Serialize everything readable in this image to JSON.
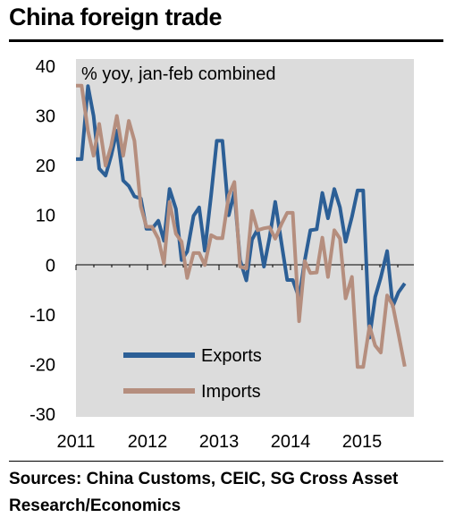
{
  "chart_data": {
    "type": "line",
    "title": "China foreign trade",
    "axis_note": "% yoy, jan-feb combined",
    "ylim": [
      -30,
      40
    ],
    "y_ticks": [
      40,
      30,
      20,
      10,
      0,
      -10,
      -20,
      -30
    ],
    "x_tick_labels": [
      "2011",
      "2012",
      "2013",
      "2014",
      "2015"
    ],
    "xlim": [
      2011.0,
      2015.8
    ],
    "grid": false,
    "legend_position": "bottom-left",
    "series": [
      {
        "name": "Exports",
        "color": "#2c5f96",
        "x": [
          2011.0,
          2011.08,
          2011.17,
          2011.25,
          2011.33,
          2011.42,
          2011.5,
          2011.58,
          2011.67,
          2011.75,
          2011.83,
          2011.92,
          2012.0,
          2012.08,
          2012.17,
          2012.25,
          2012.33,
          2012.42,
          2012.5,
          2012.58,
          2012.67,
          2012.75,
          2012.83,
          2012.92,
          2013.0,
          2013.08,
          2013.17,
          2013.25,
          2013.33,
          2013.42,
          2013.5,
          2013.58,
          2013.67,
          2013.75,
          2013.83,
          2013.92,
          2014.0,
          2014.08,
          2014.17,
          2014.25,
          2014.33,
          2014.42,
          2014.5,
          2014.58,
          2014.67,
          2014.75,
          2014.83,
          2014.92,
          2015.0,
          2015.08,
          2015.17,
          2015.25,
          2015.33,
          2015.42,
          2015.5,
          2015.58,
          2015.67
        ],
        "values": [
          21.3,
          21.3,
          36,
          30,
          19.4,
          18,
          22,
          27,
          17,
          15.9,
          13.8,
          13.4,
          7.3,
          7.3,
          8.9,
          4.9,
          15.3,
          11.3,
          1,
          2.7,
          9.9,
          11.6,
          2.9,
          14.1,
          25,
          25,
          10,
          14.7,
          1,
          -3.1,
          5.1,
          7.2,
          -0.3,
          5.6,
          12.7,
          4.3,
          -3,
          -3,
          -6.6,
          0.9,
          7,
          7.2,
          14.5,
          9.4,
          15.3,
          11.6,
          4.7,
          9.7,
          15,
          15,
          -14.6,
          -6.4,
          -2.5,
          2.8,
          -8.3,
          -5.5,
          -3.7
        ]
      },
      {
        "name": "Imports",
        "color": "#b58e7e",
        "x": [
          2011.0,
          2011.08,
          2011.17,
          2011.25,
          2011.33,
          2011.42,
          2011.5,
          2011.58,
          2011.67,
          2011.75,
          2011.83,
          2011.92,
          2012.0,
          2012.08,
          2012.17,
          2012.25,
          2012.33,
          2012.42,
          2012.5,
          2012.58,
          2012.67,
          2012.75,
          2012.83,
          2012.92,
          2013.0,
          2013.08,
          2013.17,
          2013.25,
          2013.33,
          2013.42,
          2013.5,
          2013.58,
          2013.67,
          2013.75,
          2013.83,
          2013.92,
          2014.0,
          2014.08,
          2014.17,
          2014.25,
          2014.33,
          2014.42,
          2014.5,
          2014.58,
          2014.67,
          2014.75,
          2014.83,
          2014.92,
          2015.0,
          2015.08,
          2015.17,
          2015.25,
          2015.33,
          2015.42,
          2015.5,
          2015.58,
          2015.67
        ],
        "values": [
          36.1,
          36.1,
          27,
          22,
          28.4,
          20,
          24,
          30,
          22,
          29,
          25,
          11.8,
          7.7,
          7.7,
          5.3,
          0.3,
          12.7,
          6.3,
          4.7,
          -2.6,
          2.4,
          2.4,
          0,
          6,
          5.4,
          5.4,
          14,
          16.7,
          -0.3,
          -0.7,
          10.9,
          7,
          7.4,
          7.6,
          5.3,
          8.3,
          10.5,
          10.5,
          -11.3,
          0.8,
          -1.6,
          -1.5,
          5.5,
          -2.4,
          7,
          5.3,
          -6.7,
          -2.4,
          -20.5,
          -20.5,
          -12.3,
          -16.2,
          -17.6,
          -6.1,
          -8.1,
          -13.8,
          -20.4
        ]
      }
    ]
  },
  "source_text": "Sources: China Customs, CEIC, SG Cross Asset Research/Economics"
}
